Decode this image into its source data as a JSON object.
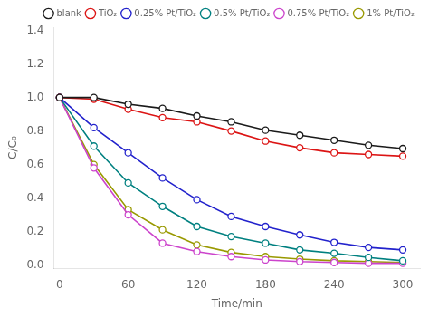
{
  "chart_data": {
    "type": "line",
    "xlabel": "Time/min",
    "ylabel": "C/C₀",
    "x": [
      0,
      30,
      60,
      90,
      120,
      150,
      180,
      210,
      240,
      270,
      300
    ],
    "series": [
      {
        "name": "blank",
        "color": "#1a1a1a",
        "values": [
          1.0,
          1.0,
          0.96,
          0.935,
          0.89,
          0.855,
          0.805,
          0.775,
          0.745,
          0.715,
          0.695
        ]
      },
      {
        "name": "TiO₂",
        "color": "#dc1414",
        "values": [
          1.0,
          0.99,
          0.93,
          0.88,
          0.855,
          0.8,
          0.74,
          0.7,
          0.67,
          0.66,
          0.65
        ]
      },
      {
        "name": "0.25% Pt/TiO₂",
        "color": "#2222cc",
        "values": [
          1.0,
          0.82,
          0.67,
          0.52,
          0.39,
          0.29,
          0.23,
          0.18,
          0.135,
          0.105,
          0.09
        ]
      },
      {
        "name": "0.5% Pt/TiO₂",
        "color": "#008080",
        "values": [
          1.0,
          0.71,
          0.49,
          0.35,
          0.23,
          0.17,
          0.13,
          0.09,
          0.07,
          0.045,
          0.025
        ]
      },
      {
        "name": "0.75% Pt/TiO₂",
        "color": "#cc44cc",
        "values": [
          1.0,
          0.58,
          0.3,
          0.13,
          0.08,
          0.05,
          0.03,
          0.02,
          0.015,
          0.01,
          0.01
        ]
      },
      {
        "name": "1% Pt/TiO₂",
        "color": "#999900",
        "values": [
          1.0,
          0.6,
          0.33,
          0.21,
          0.12,
          0.075,
          0.05,
          0.035,
          0.025,
          0.02,
          0.015
        ]
      }
    ],
    "xlim": [
      -5,
      315
    ],
    "ylim": [
      -0.02,
      1.42
    ],
    "xticks": [
      0,
      60,
      120,
      180,
      240,
      300
    ],
    "yticks": [
      {
        "value": 0,
        "label": "0.0"
      },
      0.2,
      0.4,
      0.6,
      0.8,
      {
        "value": 1,
        "label": "1.0"
      },
      1.2,
      1.4
    ],
    "marker": "o",
    "line_style": "solid",
    "grid": false,
    "legend": "upper right"
  }
}
